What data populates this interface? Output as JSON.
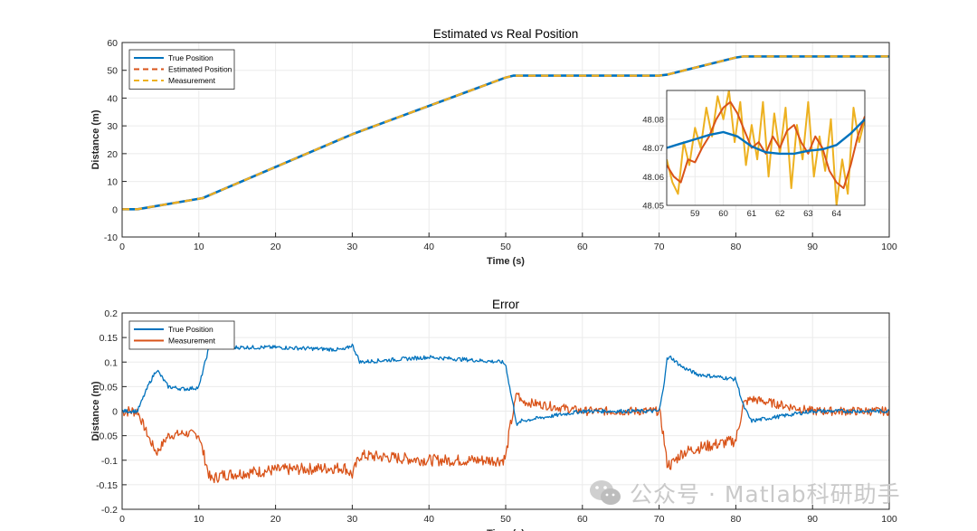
{
  "chart_data": [
    {
      "type": "line",
      "title": "Estimated vs Real Position",
      "xlabel": "Time (s)",
      "ylabel": "Distance (m)",
      "xlim": [
        0,
        100
      ],
      "ylim": [
        -10,
        60
      ],
      "xticks": [
        "0",
        "10",
        "20",
        "30",
        "40",
        "50",
        "60",
        "70",
        "80",
        "90",
        "100"
      ],
      "yticks": [
        "-10",
        "0",
        "10",
        "20",
        "30",
        "40",
        "50",
        "60"
      ],
      "grid": true,
      "legend_position": "top-left",
      "series": [
        {
          "name": "True Position",
          "color": "#0072BD",
          "style": "solid",
          "x": [
            0,
            2,
            10.5,
            30,
            50,
            51,
            70,
            71,
            80,
            81,
            100
          ],
          "y": [
            0,
            0,
            4,
            27,
            47.4,
            48.07,
            48.07,
            48.4,
            54.6,
            55,
            55
          ]
        },
        {
          "name": "Estimated Position",
          "color": "#D95319",
          "style": "dashed",
          "x": [
            0,
            2,
            10.5,
            30,
            50,
            51,
            70,
            71,
            80,
            81,
            100
          ],
          "y": [
            0,
            0,
            4,
            27,
            47.4,
            48.07,
            48.07,
            48.4,
            54.6,
            55,
            55
          ]
        },
        {
          "name": "Measurement",
          "color": "#EDB120",
          "style": "dashed",
          "x": [
            0,
            2,
            10.5,
            30,
            50,
            51,
            70,
            71,
            80,
            81,
            100
          ],
          "y": [
            0,
            0,
            4,
            27,
            47.4,
            48.07,
            48.07,
            48.4,
            54.6,
            55,
            55
          ]
        }
      ],
      "inset": {
        "xlim": [
          58,
          65
        ],
        "ylim": [
          48.05,
          48.09
        ],
        "xticks": [
          "59",
          "60",
          "61",
          "62",
          "63",
          "64"
        ],
        "yticks": [
          "48.05",
          "48.06",
          "48.07",
          "48.08"
        ],
        "series": [
          {
            "name": "True Position",
            "color": "#0072BD",
            "x": [
              58,
              58.5,
              59,
              59.5,
              60,
              60.5,
              61,
              61.5,
              62,
              62.5,
              63,
              63.5,
              64,
              64.5,
              65
            ],
            "y": [
              48.07,
              48.0715,
              48.073,
              48.0745,
              48.0755,
              48.074,
              48.0705,
              48.0685,
              48.068,
              48.068,
              48.069,
              48.0695,
              48.071,
              48.075,
              48.08
            ]
          },
          {
            "name": "Estimated Position",
            "color": "#D95319",
            "x": [
              58,
              58.25,
              58.5,
              58.75,
              59,
              59.25,
              59.5,
              59.75,
              60,
              60.25,
              60.5,
              60.75,
              61,
              61.25,
              61.5,
              61.75,
              62,
              62.25,
              62.5,
              62.75,
              63,
              63.25,
              63.5,
              63.75,
              64,
              64.25,
              64.5,
              64.75,
              65
            ],
            "y": [
              48.064,
              48.06,
              48.058,
              48.066,
              48.065,
              48.07,
              48.074,
              48.08,
              48.084,
              48.086,
              48.082,
              48.076,
              48.07,
              48.072,
              48.068,
              48.074,
              48.07,
              48.076,
              48.078,
              48.072,
              48.068,
              48.074,
              48.07,
              48.062,
              48.058,
              48.056,
              48.064,
              48.074,
              48.081
            ]
          },
          {
            "name": "Measurement",
            "color": "#EDB120",
            "x": [
              58,
              58.2,
              58.4,
              58.6,
              58.8,
              59,
              59.2,
              59.4,
              59.6,
              59.8,
              60,
              60.2,
              60.4,
              60.6,
              60.8,
              61,
              61.2,
              61.4,
              61.6,
              61.8,
              62,
              62.2,
              62.4,
              62.6,
              62.8,
              63,
              63.2,
              63.4,
              63.6,
              63.8,
              64,
              64.2,
              64.4,
              64.6,
              64.8,
              65
            ],
            "y": [
              48.066,
              48.058,
              48.054,
              48.072,
              48.064,
              48.077,
              48.07,
              48.084,
              48.074,
              48.088,
              48.08,
              48.09,
              48.072,
              48.086,
              48.064,
              48.078,
              48.066,
              48.086,
              48.06,
              48.082,
              48.068,
              48.084,
              48.056,
              48.078,
              48.066,
              48.086,
              48.06,
              48.074,
              48.062,
              48.08,
              48.05,
              48.066,
              48.054,
              48.084,
              48.072,
              48.08
            ]
          }
        ]
      }
    },
    {
      "type": "line",
      "title": "Error",
      "xlabel": "Time (s)",
      "ylabel": "Distance (m)",
      "xlim": [
        0,
        100
      ],
      "ylim": [
        -0.2,
        0.2
      ],
      "xticks": [
        "0",
        "10",
        "20",
        "30",
        "40",
        "50",
        "60",
        "70",
        "80",
        "90",
        "100"
      ],
      "yticks": [
        "-0.2",
        "-0.15",
        "-0.1",
        "-0.05",
        "0",
        "0.05",
        "0.1",
        "0.15",
        "0.2"
      ],
      "grid": true,
      "legend_position": "top-left",
      "series": [
        {
          "name": "True Position",
          "color": "#0072BD",
          "style": "solid",
          "x": [
            0,
            2,
            3.5,
            4.5,
            6,
            8,
            10,
            10.5,
            11.5,
            13,
            20,
            29,
            30,
            31,
            40,
            49.5,
            50,
            50.5,
            51.5,
            52,
            60,
            70,
            70.5,
            71,
            71.5,
            73,
            75,
            80,
            81,
            82,
            90,
            100
          ],
          "y": [
            0,
            0,
            0.055,
            0.085,
            0.05,
            0.045,
            0.048,
            0.08,
            0.14,
            0.13,
            0.13,
            0.125,
            0.135,
            0.1,
            0.11,
            0.1,
            0.095,
            0.05,
            -0.03,
            -0.02,
            0,
            0,
            0.04,
            0.105,
            0.11,
            0.09,
            0.075,
            0.065,
            0.01,
            -0.02,
            0,
            0
          ]
        },
        {
          "name": "Measurement",
          "color": "#D95319",
          "style": "solid",
          "x": [
            0,
            2,
            3.5,
            4.5,
            6,
            8,
            10,
            10.5,
            11.5,
            13,
            20,
            29,
            30,
            31,
            40,
            49.5,
            50,
            50.5,
            51.5,
            52,
            60,
            70,
            70.5,
            71,
            71.5,
            73,
            75,
            80,
            81,
            82,
            90,
            100
          ],
          "y": [
            0,
            0,
            -0.055,
            -0.085,
            -0.05,
            -0.045,
            -0.048,
            -0.08,
            -0.14,
            -0.13,
            -0.12,
            -0.115,
            -0.13,
            -0.09,
            -0.1,
            -0.1,
            -0.095,
            -0.04,
            0.04,
            0.02,
            0,
            0,
            -0.04,
            -0.105,
            -0.11,
            -0.085,
            -0.075,
            -0.06,
            0.015,
            0.025,
            0,
            0
          ]
        }
      ]
    }
  ],
  "watermark": {
    "text": "公众号 · Matlab科研助手",
    "icon": "wechat-icon"
  }
}
